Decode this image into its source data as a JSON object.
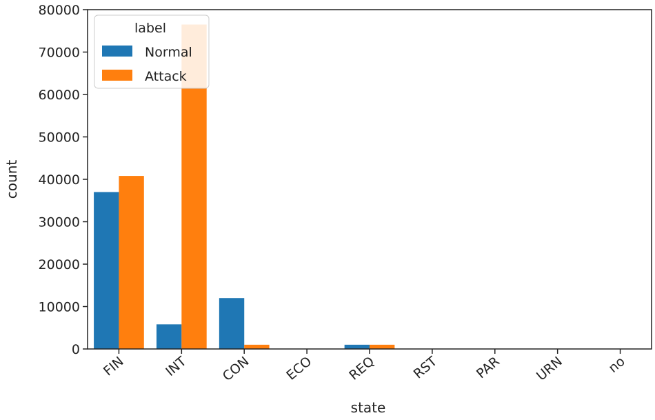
{
  "chart_data": {
    "type": "bar",
    "title": "",
    "xlabel": "state",
    "ylabel": "count",
    "categories": [
      "FIN",
      "INT",
      "CON",
      "ECO",
      "REQ",
      "RST",
      "PAR",
      "URN",
      "no"
    ],
    "ylim": [
      0,
      80000
    ],
    "yticks": [
      0,
      10000,
      20000,
      30000,
      40000,
      50000,
      60000,
      70000,
      80000
    ],
    "ytick_labels": [
      "0",
      "10000",
      "20000",
      "30000",
      "40000",
      "50000",
      "60000",
      "70000",
      "80000"
    ],
    "grid": false,
    "series": [
      {
        "name": "Normal",
        "color": "#1f77b4",
        "values": [
          37000,
          5800,
          12000,
          50,
          1000,
          5,
          5,
          5,
          5
        ]
      },
      {
        "name": "Attack",
        "color": "#ff7f0e",
        "values": [
          40800,
          76500,
          1000,
          10,
          1000,
          5,
          5,
          5,
          5
        ]
      }
    ],
    "legend": {
      "title": "label",
      "placement": "top-left"
    }
  }
}
